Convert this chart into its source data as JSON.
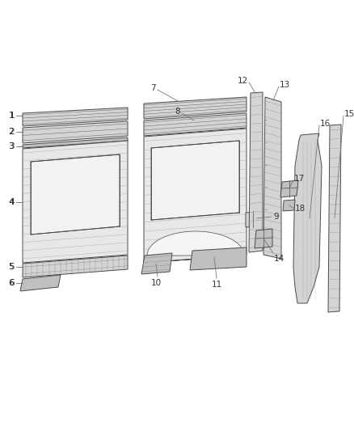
{
  "background_color": "#ffffff",
  "line_color": "#4a4a4a",
  "fill_light": "#e8e8e8",
  "fill_mid": "#d4d4d4",
  "fill_dark": "#c0c0c0",
  "label_color": "#333333",
  "fig_w": 4.38,
  "fig_h": 5.33,
  "dpi": 100
}
